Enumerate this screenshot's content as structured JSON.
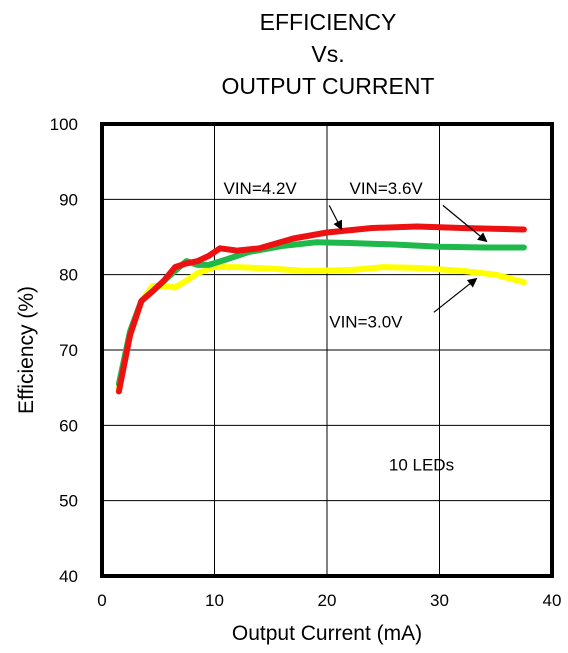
{
  "chart_data": {
    "type": "line",
    "title_lines": [
      "EFFICIENCY",
      "Vs.",
      "OUTPUT CURRENT"
    ],
    "xlabel": "Output Current (mA)",
    "ylabel": "Efficiency (%)",
    "xlim": [
      0,
      40
    ],
    "ylim": [
      40,
      100
    ],
    "xticks": [
      0,
      10,
      20,
      30,
      40
    ],
    "yticks": [
      40,
      50,
      60,
      70,
      80,
      90,
      100
    ],
    "grid": true,
    "series": [
      {
        "name": "VIN=3.0V",
        "color": "#ffff00",
        "points": [
          [
            1.5,
            65
          ],
          [
            2.5,
            72
          ],
          [
            3.5,
            76.5
          ],
          [
            4.5,
            78.5
          ],
          [
            5.5,
            78.5
          ],
          [
            6.5,
            78.3
          ],
          [
            7.5,
            79.2
          ],
          [
            8.5,
            80.2
          ],
          [
            10,
            81
          ],
          [
            12,
            81
          ],
          [
            15,
            80.8
          ],
          [
            18,
            80.5
          ],
          [
            22,
            80.6
          ],
          [
            25,
            81
          ],
          [
            28,
            80.9
          ],
          [
            32,
            80.5
          ],
          [
            35,
            80
          ],
          [
            37.5,
            79
          ]
        ]
      },
      {
        "name": "VIN=3.6V",
        "color": "#1fb84a",
        "points": [
          [
            1.5,
            65.5
          ],
          [
            2.5,
            72.5
          ],
          [
            3.5,
            76.5
          ],
          [
            5,
            78.5
          ],
          [
            6.5,
            80.5
          ],
          [
            7.5,
            81.8
          ],
          [
            8.5,
            81.3
          ],
          [
            9.5,
            81.3
          ],
          [
            11,
            82
          ],
          [
            13,
            83
          ],
          [
            16,
            83.8
          ],
          [
            19,
            84.3
          ],
          [
            22,
            84.2
          ],
          [
            26,
            84
          ],
          [
            30,
            83.7
          ],
          [
            34,
            83.6
          ],
          [
            37.5,
            83.6
          ]
        ]
      },
      {
        "name": "VIN=4.2V",
        "color": "#ee1111",
        "points": [
          [
            1.5,
            64.5
          ],
          [
            2.5,
            72
          ],
          [
            3.5,
            76.5
          ],
          [
            4.5,
            77.8
          ],
          [
            5.5,
            79.2
          ],
          [
            6.5,
            81
          ],
          [
            7.5,
            81.5
          ],
          [
            8.5,
            81.8
          ],
          [
            9.5,
            82.5
          ],
          [
            10.5,
            83.5
          ],
          [
            12,
            83.2
          ],
          [
            14,
            83.5
          ],
          [
            17,
            84.8
          ],
          [
            20,
            85.6
          ],
          [
            24,
            86.2
          ],
          [
            28,
            86.4
          ],
          [
            32,
            86.2
          ],
          [
            37.5,
            86
          ]
        ]
      }
    ],
    "annotations": [
      {
        "text": "VIN=4.2V",
        "label_at": [
          10.8,
          90.7
        ],
        "arrow_from": [
          20.2,
          89.2
        ],
        "arrow_to": [
          21.3,
          86.0
        ]
      },
      {
        "text": "VIN=3.6V",
        "label_at": [
          22,
          90.7
        ],
        "arrow_from": [
          30.3,
          89.2
        ],
        "arrow_to": [
          34.2,
          84.4
        ]
      },
      {
        "text": "VIN=3.0V",
        "label_at": [
          20.2,
          73.0
        ],
        "arrow_from": [
          29.5,
          75.0
        ],
        "arrow_to": [
          33.3,
          79.5
        ]
      },
      {
        "text": "10 LEDs",
        "label_at": [
          25.5,
          54.0
        ]
      }
    ]
  }
}
